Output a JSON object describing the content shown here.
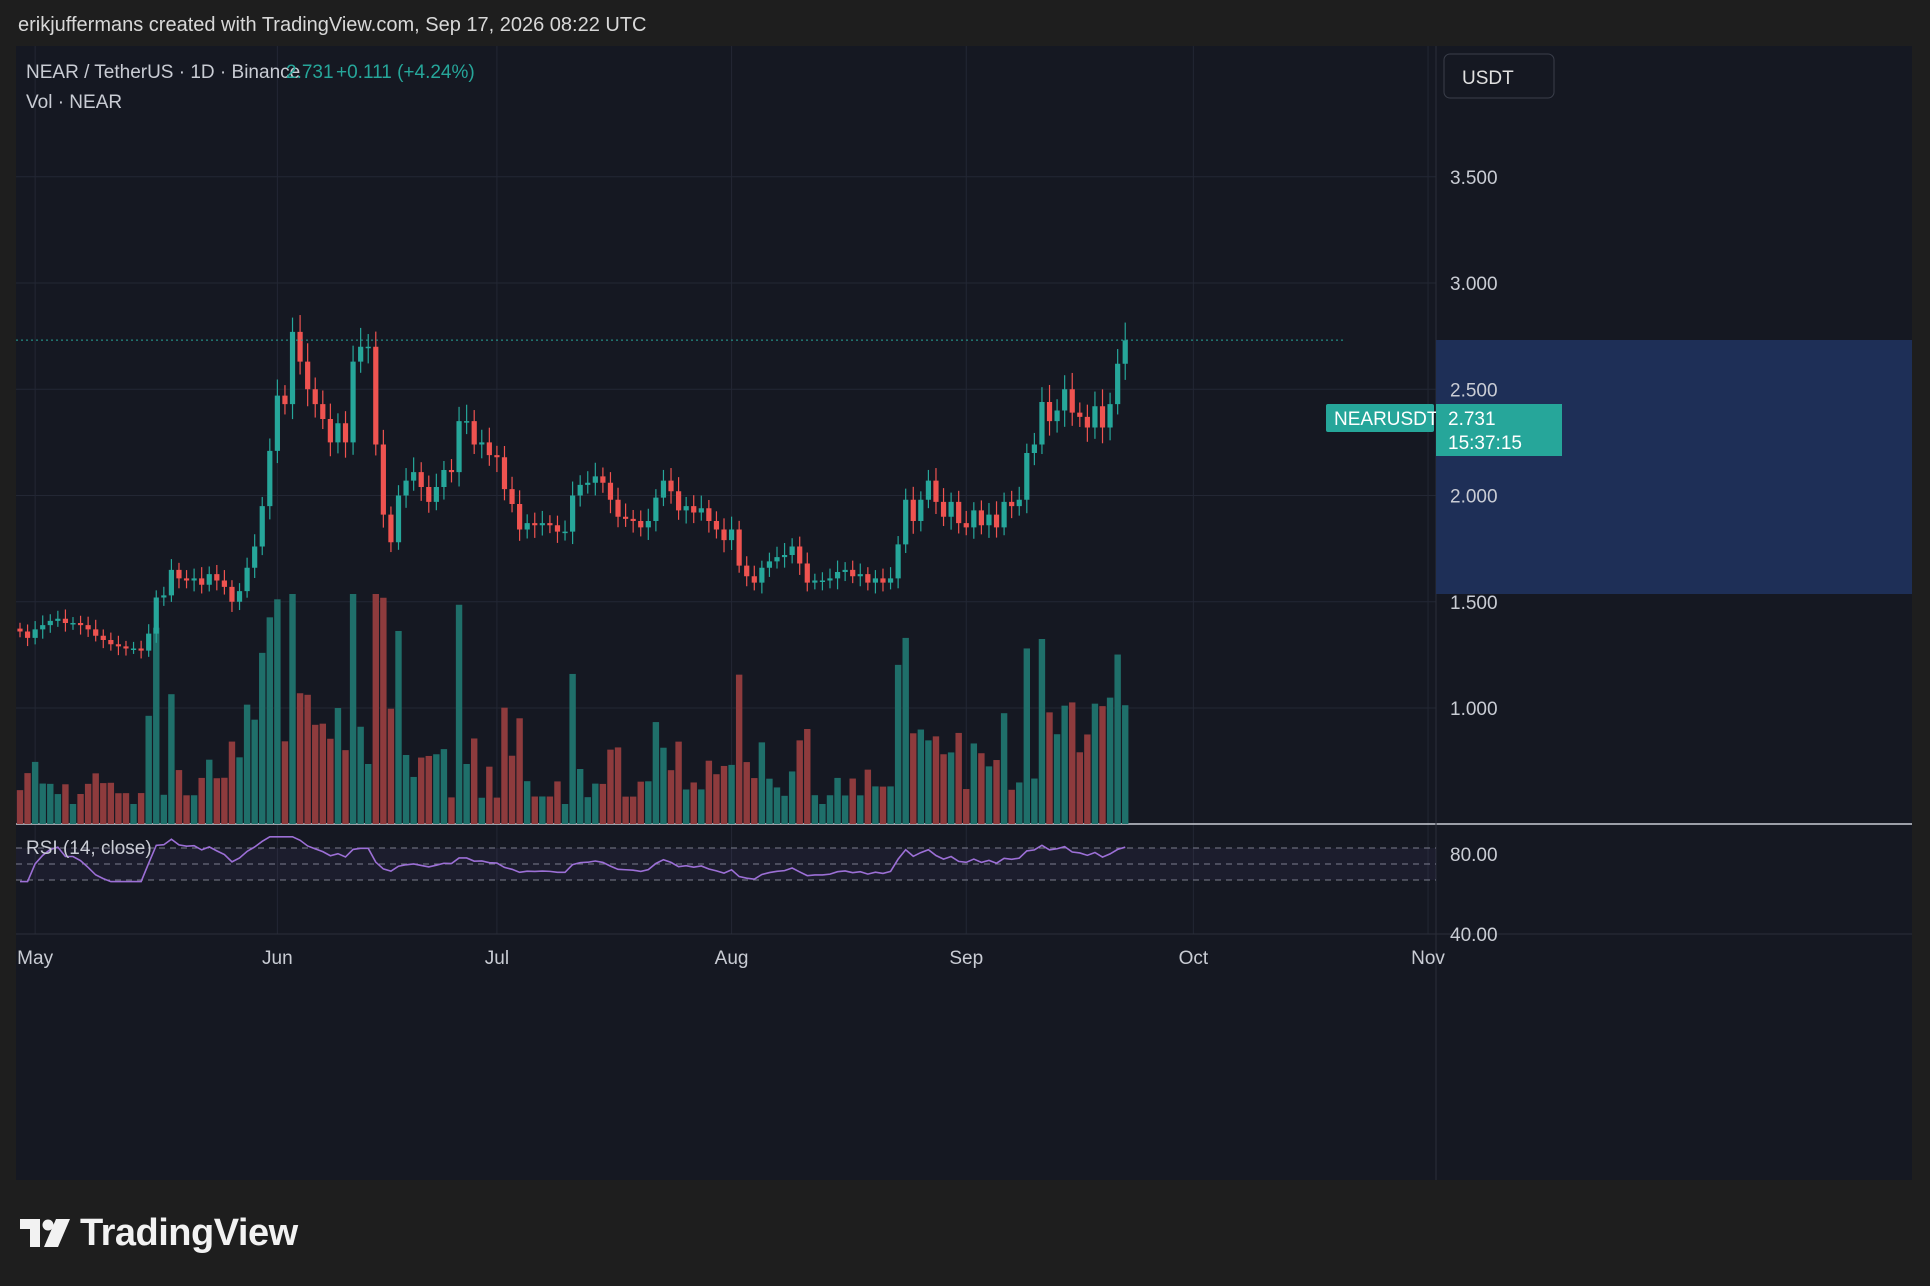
{
  "header": {
    "attribution": "erikjuffermans created with TradingView.com, Sep 17, 2026 08:22 UTC"
  },
  "legend": {
    "symbol": "NEAR / TetherUS · 1D · Binance",
    "price": "2.731",
    "change": "+0.111 (+4.24%)",
    "volume_label": "Vol · NEAR",
    "rsi_label": "RSI (14, close)"
  },
  "currency_button": "USDT",
  "price_tag": {
    "symbol": "NEARUSDT",
    "price": "2.731",
    "countdown": "15:37:15"
  },
  "logo_text": "TradingView",
  "colors": {
    "up": "#26a69a",
    "down": "#ef5350",
    "up_vol": "#1f6f6a",
    "down_vol": "#8e3b3d",
    "rsi": "#9c6fd6",
    "background": "#151822",
    "page": "#1e1e1e",
    "text": "#c9ccd4"
  },
  "chart_data": {
    "type": "candlestick",
    "symbol": "NEARUSDT",
    "interval": "1D",
    "x_labels": [
      "May",
      "Jun",
      "Jul",
      "Aug",
      "Sep",
      "Oct",
      "Nov"
    ],
    "y_ticks": [
      "3.500",
      "3.000",
      "2.500",
      "2.000",
      "1.500",
      "1.000"
    ],
    "ylim": [
      0.5,
      4.0
    ],
    "last_price": 2.731,
    "rsi": {
      "period": 14,
      "ticks": [
        "80.00",
        "40.00"
      ],
      "bands": [
        70,
        50,
        30
      ],
      "ylim": [
        25,
        85
      ]
    },
    "closes": [
      1.36,
      1.33,
      1.37,
      1.39,
      1.41,
      1.42,
      1.4,
      1.4,
      1.39,
      1.37,
      1.34,
      1.32,
      1.3,
      1.29,
      1.28,
      1.28,
      1.27,
      1.35,
      1.52,
      1.53,
      1.65,
      1.61,
      1.6,
      1.61,
      1.58,
      1.63,
      1.6,
      1.57,
      1.5,
      1.55,
      1.66,
      1.76,
      1.95,
      2.21,
      2.47,
      2.43,
      2.77,
      2.63,
      2.5,
      2.43,
      2.36,
      2.25,
      2.34,
      2.25,
      2.63,
      2.7,
      2.7,
      2.24,
      1.91,
      1.78,
      2.0,
      2.07,
      2.11,
      2.04,
      1.97,
      2.04,
      2.12,
      2.11,
      2.35,
      2.35,
      2.24,
      2.25,
      2.19,
      2.18,
      2.03,
      1.96,
      1.84,
      1.87,
      1.86,
      1.87,
      1.86,
      1.83,
      1.83,
      2.0,
      2.05,
      2.06,
      2.09,
      2.06,
      1.98,
      1.9,
      1.89,
      1.88,
      1.85,
      1.88,
      1.99,
      2.07,
      2.02,
      1.93,
      1.95,
      1.92,
      1.94,
      1.88,
      1.84,
      1.79,
      1.84,
      1.67,
      1.62,
      1.59,
      1.66,
      1.69,
      1.71,
      1.72,
      1.76,
      1.68,
      1.59,
      1.6,
      1.6,
      1.61,
      1.64,
      1.65,
      1.62,
      1.63,
      1.59,
      1.61,
      1.59,
      1.61,
      1.77,
      1.98,
      1.88,
      1.98,
      2.07,
      1.97,
      1.9,
      1.97,
      1.87,
      1.85,
      1.93,
      1.86,
      1.91,
      1.85,
      1.97,
      1.95,
      1.98,
      2.2,
      2.24,
      2.44,
      2.35,
      2.4,
      2.5,
      2.39,
      2.37,
      2.32,
      2.42,
      2.32,
      2.43,
      2.62,
      2.73
    ]
  }
}
